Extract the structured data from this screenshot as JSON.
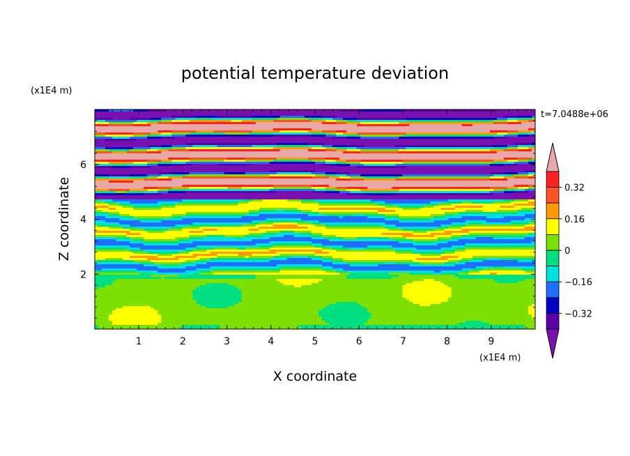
{
  "chart_data": {
    "type": "heatmap",
    "title": "potential temperature deviation",
    "time_label": "t=7.0488e+06",
    "xlabel": "X coordinate",
    "ylabel": "Z coordinate",
    "x_unit": "(x1E4 m)",
    "y_unit": "(x1E4 m)",
    "xlim": [
      0,
      10
    ],
    "ylim": [
      0,
      8
    ],
    "x_ticks": [
      "1",
      "2",
      "3",
      "4",
      "5",
      "6",
      "7",
      "8",
      "9"
    ],
    "y_ticks": [
      "2",
      "4",
      "6"
    ],
    "colorbar": {
      "levels": [
        -0.4,
        -0.32,
        -0.24,
        -0.16,
        -0.08,
        0,
        0.08,
        0.16,
        0.24,
        0.32,
        0.4
      ],
      "tick_labels": [
        "0.32",
        "0.16",
        "0",
        "-0.16",
        "-0.32"
      ],
      "colors": [
        "#e8a8a8",
        "#ff2020",
        "#ff5028",
        "#ff9a00",
        "#ffff00",
        "#7ee000",
        "#00e080",
        "#00e0e0",
        "#1e6eff",
        "#0000c8",
        "#5a00a8",
        "#7a10b0"
      ],
      "extends": "both"
    },
    "regions": [
      {
        "z": [
          0,
          1.9
        ],
        "dominant_value": 0.04,
        "description": "lower layer mostly near zero"
      },
      {
        "z": [
          1.9,
          4.7
        ],
        "dominant_value": "mixed",
        "description": "banded mixed layer"
      },
      {
        "z": [
          4.7,
          8
        ],
        "dominant_value": "alternating",
        "description": "strong alternating bands"
      }
    ]
  }
}
